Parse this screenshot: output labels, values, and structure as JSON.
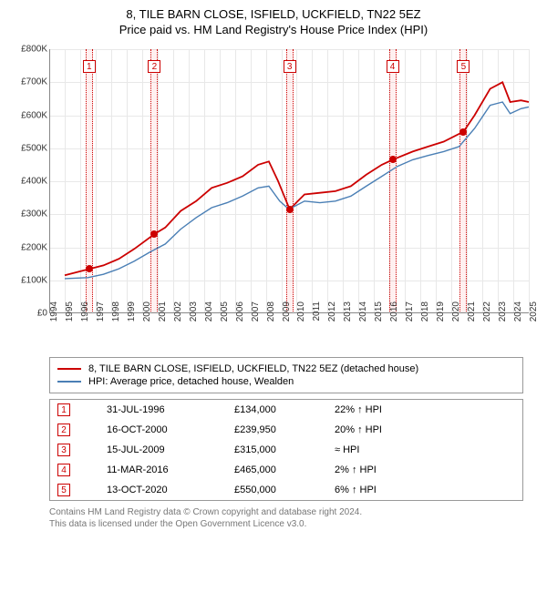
{
  "title": "8, TILE BARN CLOSE, ISFIELD, UCKFIELD, TN22 5EZ",
  "subtitle": "Price paid vs. HM Land Registry's House Price Index (HPI)",
  "chart": {
    "type": "line",
    "background_color": "#ffffff",
    "grid_color": "#e8e8e8",
    "axis_color": "#888888",
    "x_min": 1994,
    "x_max": 2025,
    "x_ticks": [
      1994,
      1995,
      1996,
      1997,
      1998,
      1999,
      2000,
      2001,
      2002,
      2003,
      2004,
      2005,
      2006,
      2007,
      2008,
      2009,
      2010,
      2011,
      2012,
      2013,
      2014,
      2015,
      2016,
      2017,
      2018,
      2019,
      2020,
      2021,
      2022,
      2023,
      2024,
      2025
    ],
    "y_min": 0,
    "y_max": 800000,
    "y_tick_step": 100000,
    "y_tick_labels": [
      "£0",
      "£100K",
      "£200K",
      "£300K",
      "£400K",
      "£500K",
      "£600K",
      "£700K",
      "£800K"
    ],
    "label_fontsize": 10,
    "title_fontsize": 13,
    "series": [
      {
        "name": "property",
        "color": "#cc0000",
        "width": 1.8,
        "points": [
          [
            1995.0,
            115000
          ],
          [
            1996.58,
            134000
          ],
          [
            1997.5,
            145000
          ],
          [
            1998.5,
            165000
          ],
          [
            1999.5,
            195000
          ],
          [
            2000.8,
            239950
          ],
          [
            2001.5,
            260000
          ],
          [
            2002.5,
            310000
          ],
          [
            2003.5,
            340000
          ],
          [
            2004.5,
            380000
          ],
          [
            2005.5,
            395000
          ],
          [
            2006.5,
            415000
          ],
          [
            2007.5,
            450000
          ],
          [
            2008.2,
            460000
          ],
          [
            2008.8,
            400000
          ],
          [
            2009.54,
            315000
          ],
          [
            2010.5,
            360000
          ],
          [
            2011.5,
            365000
          ],
          [
            2012.5,
            370000
          ],
          [
            2013.5,
            385000
          ],
          [
            2014.5,
            420000
          ],
          [
            2015.5,
            450000
          ],
          [
            2016.19,
            465000
          ],
          [
            2017.5,
            490000
          ],
          [
            2018.5,
            505000
          ],
          [
            2019.5,
            520000
          ],
          [
            2020.78,
            550000
          ],
          [
            2021.5,
            600000
          ],
          [
            2022.5,
            680000
          ],
          [
            2023.3,
            700000
          ],
          [
            2023.8,
            640000
          ],
          [
            2024.5,
            645000
          ],
          [
            2025.0,
            640000
          ]
        ]
      },
      {
        "name": "hpi",
        "color": "#4a7fb5",
        "width": 1.4,
        "points": [
          [
            1995.0,
            105000
          ],
          [
            1996.5,
            108000
          ],
          [
            1997.5,
            118000
          ],
          [
            1998.5,
            135000
          ],
          [
            1999.5,
            158000
          ],
          [
            2000.5,
            185000
          ],
          [
            2001.5,
            210000
          ],
          [
            2002.5,
            255000
          ],
          [
            2003.5,
            290000
          ],
          [
            2004.5,
            320000
          ],
          [
            2005.5,
            335000
          ],
          [
            2006.5,
            355000
          ],
          [
            2007.5,
            380000
          ],
          [
            2008.2,
            385000
          ],
          [
            2008.9,
            340000
          ],
          [
            2009.5,
            315000
          ],
          [
            2010.5,
            340000
          ],
          [
            2011.5,
            335000
          ],
          [
            2012.5,
            340000
          ],
          [
            2013.5,
            355000
          ],
          [
            2014.5,
            385000
          ],
          [
            2015.5,
            415000
          ],
          [
            2016.5,
            445000
          ],
          [
            2017.5,
            465000
          ],
          [
            2018.5,
            478000
          ],
          [
            2019.5,
            490000
          ],
          [
            2020.5,
            505000
          ],
          [
            2021.5,
            560000
          ],
          [
            2022.5,
            630000
          ],
          [
            2023.3,
            640000
          ],
          [
            2023.8,
            605000
          ],
          [
            2024.5,
            620000
          ],
          [
            2025.0,
            625000
          ]
        ]
      }
    ],
    "sale_markers": [
      {
        "n": "1",
        "year": 1996.58,
        "value": 134000
      },
      {
        "n": "2",
        "year": 2000.8,
        "value": 239950
      },
      {
        "n": "3",
        "year": 2009.54,
        "value": 315000
      },
      {
        "n": "4",
        "year": 2016.19,
        "value": 465000
      },
      {
        "n": "5",
        "year": 2020.78,
        "value": 550000
      }
    ],
    "marker_band_color": "rgba(255,0,0,0.06)",
    "marker_border_color": "#cc0000"
  },
  "legend": {
    "items": [
      {
        "color": "#cc0000",
        "label": "8, TILE BARN CLOSE, ISFIELD, UCKFIELD, TN22 5EZ (detached house)"
      },
      {
        "color": "#4a7fb5",
        "label": "HPI: Average price, detached house, Wealden"
      }
    ]
  },
  "sales_table": {
    "rows": [
      {
        "n": "1",
        "date": "31-JUL-1996",
        "price": "£134,000",
        "pct": "22% ↑ HPI"
      },
      {
        "n": "2",
        "date": "16-OCT-2000",
        "price": "£239,950",
        "pct": "20% ↑ HPI"
      },
      {
        "n": "3",
        "date": "15-JUL-2009",
        "price": "£315,000",
        "pct": "≈ HPI"
      },
      {
        "n": "4",
        "date": "11-MAR-2016",
        "price": "£465,000",
        "pct": "2% ↑ HPI"
      },
      {
        "n": "5",
        "date": "13-OCT-2020",
        "price": "£550,000",
        "pct": "6% ↑ HPI"
      }
    ]
  },
  "footer": {
    "line1": "Contains HM Land Registry data © Crown copyright and database right 2024.",
    "line2": "This data is licensed under the Open Government Licence v3.0."
  }
}
